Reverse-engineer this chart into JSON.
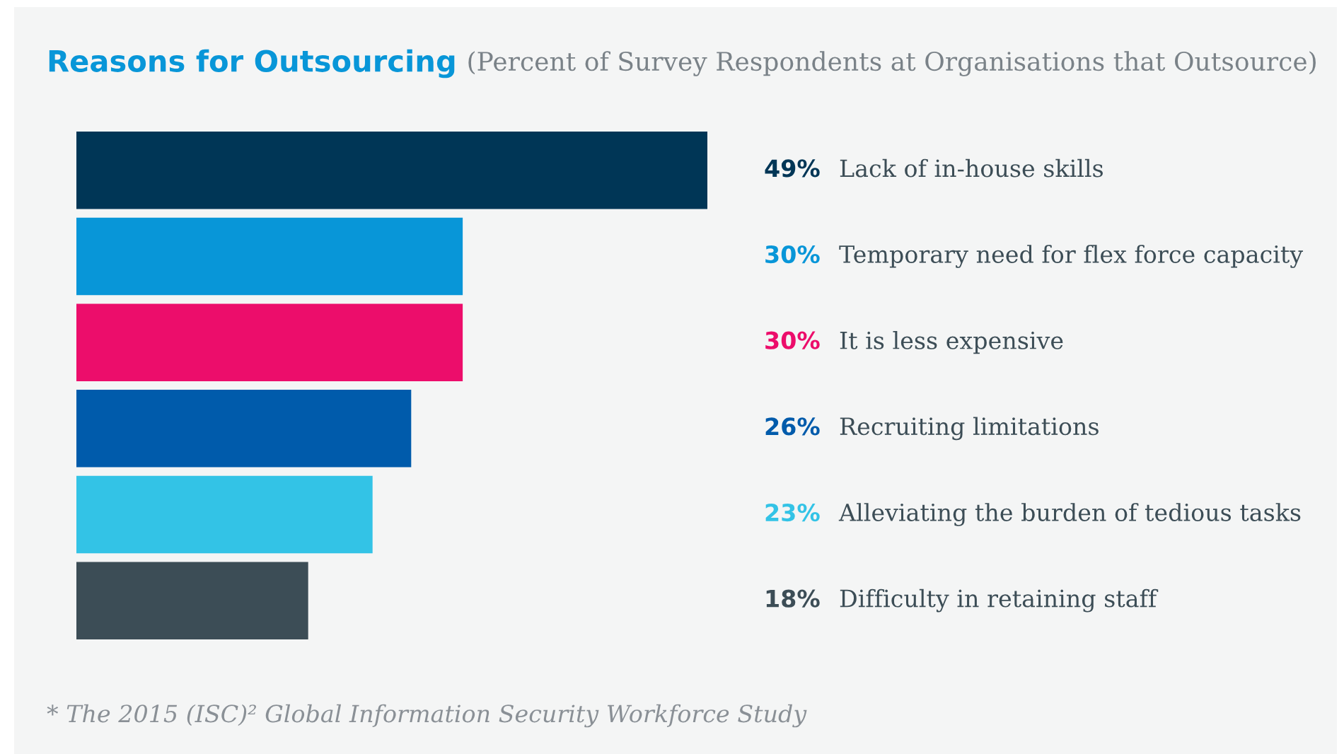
{
  "chart_data": {
    "type": "bar",
    "orientation": "horizontal",
    "title": "Reasons for Outsourcing",
    "subtitle": "(Percent of Survey Respondents at Organisations that Outsource)",
    "categories": [
      "Lack of in-house skills",
      "Temporary need for flex force capacity",
      "It is less expensive",
      "Recruiting limitations",
      "Alleviating the burden of tedious tasks",
      "Difficulty in retaining staff"
    ],
    "values": [
      49,
      30,
      30,
      26,
      23,
      18
    ],
    "colors": [
      "#003656",
      "#0896d8",
      "#ec0d6b",
      "#005bab",
      "#33c3e6",
      "#3c4d56"
    ],
    "value_labels": [
      "49%",
      "30%",
      "30%",
      "26%",
      "23%",
      "18%"
    ],
    "annotations": [
      "* The 2015 (ISC)² Global Information Security Workforce Study"
    ]
  }
}
